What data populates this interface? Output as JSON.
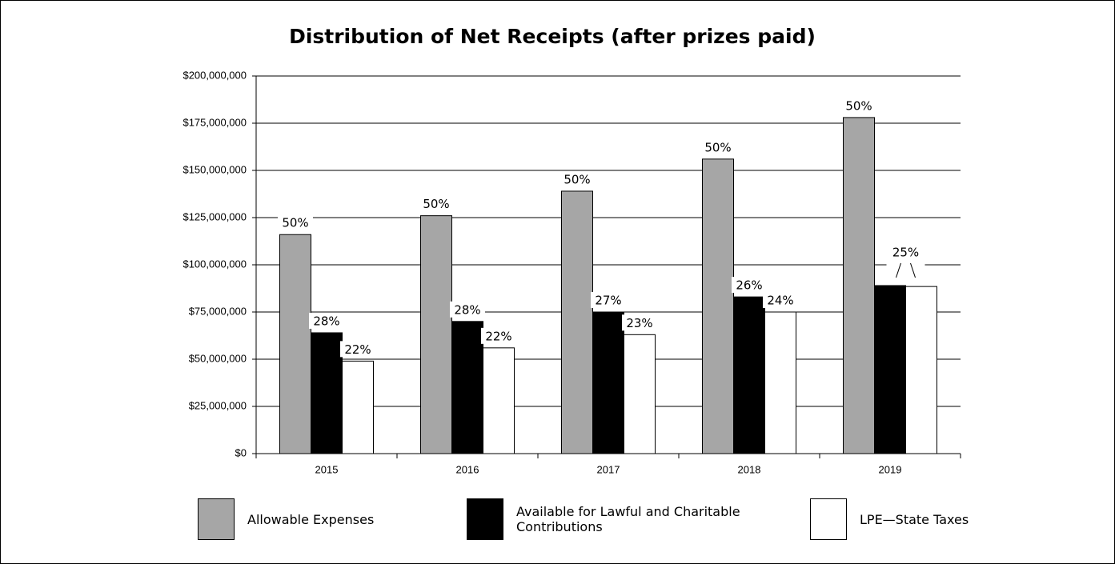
{
  "chart_data": {
    "type": "bar",
    "title": "Distribution of Net Receipts (after prizes paid)",
    "categories": [
      "2015",
      "2016",
      "2017",
      "2018",
      "2019"
    ],
    "series": [
      {
        "name": "Allowable Expenses",
        "color": "#a6a6a6",
        "values": [
          116000000,
          126000000,
          139000000,
          156000000,
          178000000
        ],
        "share_labels": [
          "50%",
          "50%",
          "50%",
          "50%",
          "50%"
        ]
      },
      {
        "name": "Available for Lawful and Charitable Contributions",
        "color": "#000000",
        "values": [
          64000000,
          70000000,
          75000000,
          83000000,
          89000000
        ],
        "share_labels": [
          "28%",
          "28%",
          "27%",
          "26%",
          "25%"
        ]
      },
      {
        "name": "LPE—State Taxes",
        "color": "#ffffff",
        "values": [
          49000000,
          56000000,
          63000000,
          75000000,
          88500000
        ],
        "share_labels": [
          "22%",
          "22%",
          "23%",
          "24%",
          null
        ]
      }
    ],
    "ylim": [
      0,
      200000000
    ],
    "yticks": [
      {
        "value": 0,
        "label": "$0"
      },
      {
        "value": 25000000,
        "label": "$25,000,000"
      },
      {
        "value": 50000000,
        "label": "$50,000,000"
      },
      {
        "value": 75000000,
        "label": "$75,000,000"
      },
      {
        "value": 100000000,
        "label": "$100,000,000"
      },
      {
        "value": 125000000,
        "label": "$125,000,000"
      },
      {
        "value": 150000000,
        "label": "$150,000,000"
      },
      {
        "value": 175000000,
        "label": "$175,000,000"
      },
      {
        "value": 200000000,
        "label": "$200,000,000"
      }
    ],
    "grid": true
  }
}
